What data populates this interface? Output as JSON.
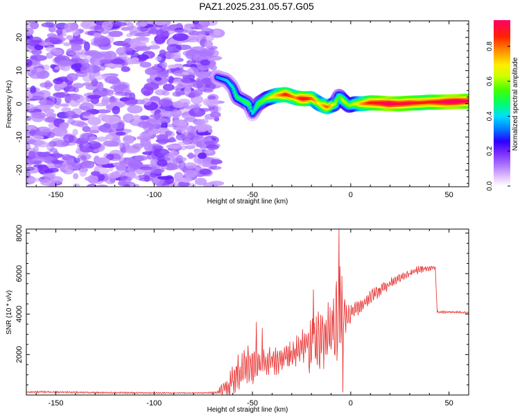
{
  "title": "PAZ1.2025.231.05.57.G05",
  "chart_data": [
    {
      "type": "heatmap",
      "xlabel": "Height of straight line (km)",
      "ylabel": "Frequency (Hz)",
      "xlim": [
        -165,
        60
      ],
      "ylim": [
        -25,
        25
      ],
      "x_ticks": [
        -150,
        -100,
        -50,
        0,
        50
      ],
      "y_ticks": [
        -20,
        -10,
        0,
        10,
        20
      ],
      "colorbar": {
        "label": "Normalized spectral amplitude",
        "range": [
          0,
          0.95
        ],
        "ticks": [
          0.0,
          0.2,
          0.4,
          0.6,
          0.8
        ],
        "tick_labels": [
          "0.0",
          "0.2",
          "0.4",
          "0.6",
          "0.8"
        ],
        "colormap": "rainbow-magenta-to-red"
      },
      "noise_region": {
        "x_from": -165,
        "x_to": -68,
        "y_from": -25,
        "y_to": 25,
        "amplitude": 0.15
      },
      "ridge": {
        "x": [
          -68,
          -63,
          -60,
          -58,
          -55,
          -52,
          -50,
          -47,
          -43,
          -38,
          -33,
          -28,
          -24,
          -20,
          -16,
          -12,
          -8,
          -6,
          -4,
          -1,
          2,
          6,
          10,
          15,
          20,
          25,
          30,
          35,
          40,
          45,
          50,
          55,
          60
        ],
        "frequency": [
          8,
          7,
          5,
          2,
          1,
          0,
          -3,
          0,
          1.5,
          2.5,
          2.8,
          1.8,
          1.5,
          1.6,
          0,
          -1,
          0,
          2.5,
          1,
          -0.5,
          0,
          0,
          0.3,
          0.2,
          0,
          0,
          0.2,
          0.3,
          0.5,
          0.5,
          0.6,
          0.7,
          0.8
        ],
        "amplitude": [
          0.3,
          0.35,
          0.4,
          0.45,
          0.45,
          0.5,
          0.35,
          0.5,
          0.55,
          0.7,
          0.85,
          0.75,
          0.9,
          0.8,
          0.65,
          0.8,
          0.6,
          0.45,
          0.6,
          0.55,
          0.6,
          0.75,
          0.85,
          0.9,
          0.95,
          0.9,
          0.9,
          0.85,
          0.85,
          0.9,
          0.95,
          0.95,
          0.9
        ]
      },
      "grid": false
    },
    {
      "type": "line",
      "xlabel": "Height of straight line (km)",
      "ylabel": "SNR (10 * v/v)",
      "xlim": [
        -165,
        60
      ],
      "ylim": [
        0,
        8200
      ],
      "x_ticks": [
        -150,
        -100,
        -50,
        0,
        50
      ],
      "y_ticks": [
        2000,
        4000,
        6000,
        8000
      ],
      "series": [
        {
          "color": "#e83a3a",
          "envelope": {
            "x": [
              -165,
              -150,
              -130,
              -110,
              -90,
              -75,
              -68,
              -62,
              -60,
              -55,
              -50,
              -45,
              -40,
              -35,
              -30,
              -25,
              -20,
              -15,
              -10,
              -8,
              -6,
              -4,
              -2,
              0,
              5,
              10,
              15,
              20,
              25,
              30,
              35,
              40,
              43,
              44,
              50,
              55,
              60
            ],
            "baseline": [
              150,
              150,
              120,
              110,
              100,
              100,
              120,
              400,
              800,
              1300,
              1400,
              1500,
              1600,
              1800,
              2000,
              2400,
              2600,
              2800,
              3200,
              3300,
              3500,
              3700,
              3800,
              4000,
              4400,
              4800,
              5200,
              5500,
              5800,
              6000,
              6200,
              6300,
              6300,
              4100,
              4100,
              4100,
              4050
            ],
            "noise_amplitude": [
              60,
              60,
              50,
              50,
              40,
              40,
              80,
              700,
              1300,
              1200,
              1100,
              900,
              800,
              700,
              800,
              1000,
              1800,
              1600,
              1700,
              2400,
              3500,
              2500,
              1200,
              500,
              400,
              380,
              350,
              300,
              260,
              230,
              200,
              160,
              120,
              80,
              60,
              60,
              60
            ]
          },
          "notable_peaks": [
            {
              "x": -6,
              "y": 8200
            },
            {
              "x": -19,
              "y": 5200
            },
            {
              "x": -48,
              "y": 3600
            },
            {
              "x": -45,
              "y": 3300
            }
          ],
          "notable_dips": [
            {
              "x": -4,
              "y": 150
            }
          ]
        }
      ],
      "grid": false
    }
  ]
}
